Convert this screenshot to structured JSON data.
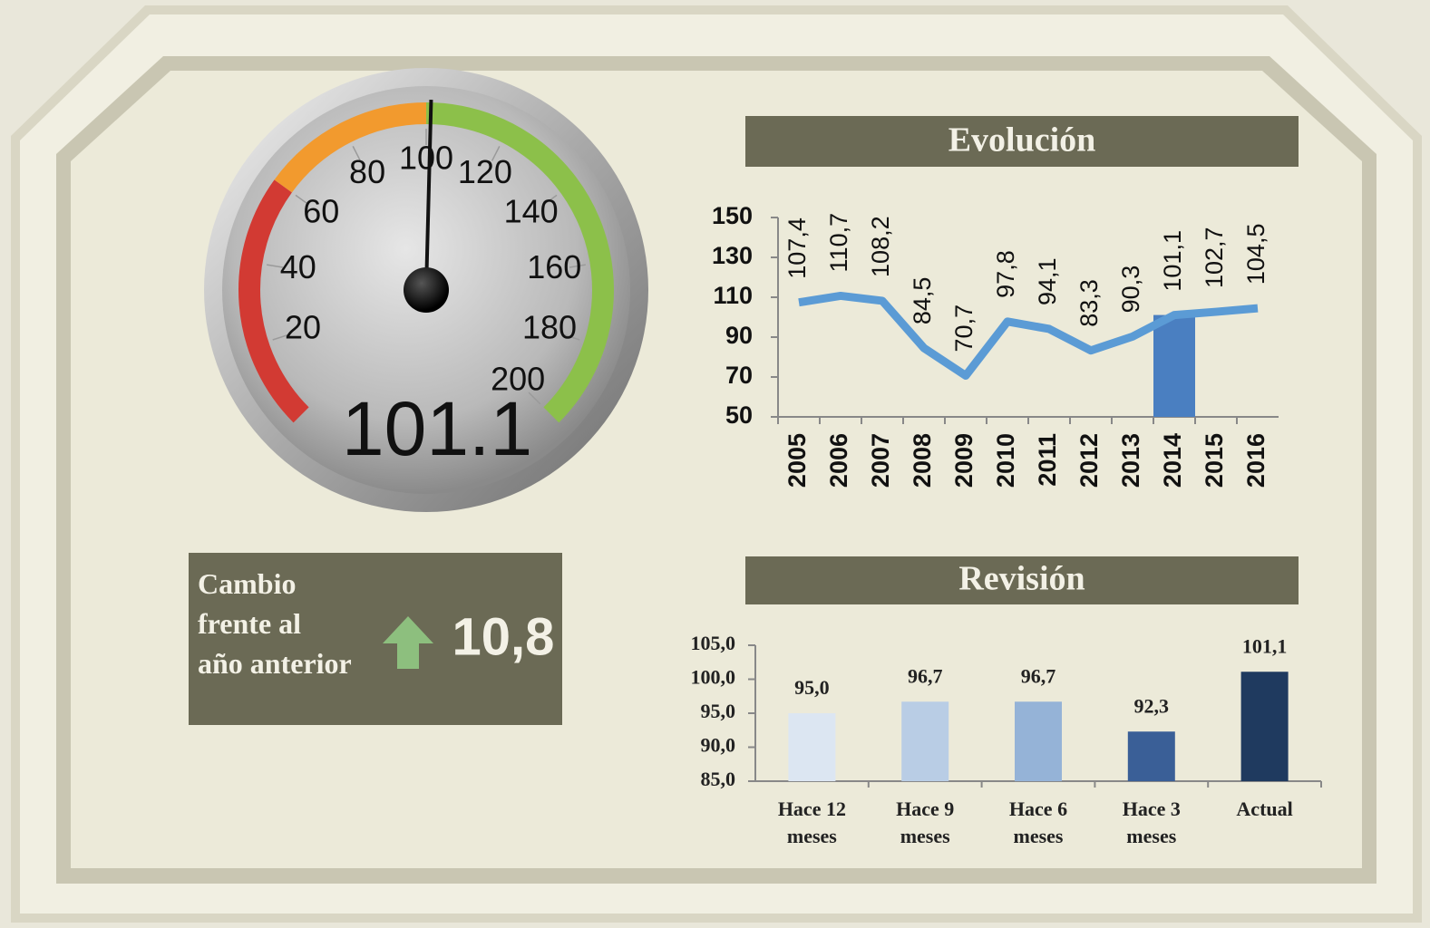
{
  "chart_data": [
    {
      "type": "gauge",
      "value": 101.1,
      "range": [
        0,
        200
      ],
      "ticks": [
        20,
        40,
        60,
        80,
        100,
        120,
        140,
        160,
        180,
        200
      ],
      "bands": [
        {
          "from": 0,
          "to": 60,
          "color": "#d23a33"
        },
        {
          "from": 60,
          "to": 100,
          "color": "#f29a2e"
        },
        {
          "from": 100,
          "to": 200,
          "color": "#8cc04a"
        }
      ],
      "needle_color": "#111111"
    },
    {
      "type": "line",
      "title": "Evolución",
      "categories": [
        "2005",
        "2006",
        "2007",
        "2008",
        "2009",
        "2010",
        "2011",
        "2012",
        "2013",
        "2014",
        "2015",
        "2016"
      ],
      "series": [
        {
          "type": "line",
          "color": "#5b9bd5",
          "values": [
            107.4,
            110.7,
            108.2,
            84.5,
            70.7,
            97.8,
            94.1,
            83.3,
            90.3,
            101.1,
            102.7,
            104.5
          ],
          "value_labels": [
            "107,4",
            "110,7",
            "108,2",
            "84,5",
            "70,7",
            "97,8",
            "94,1",
            "83,3",
            "90,3",
            "101,1",
            "102,7",
            "104,5"
          ]
        },
        {
          "type": "bar",
          "color": "#4a7fc1",
          "values": [
            null,
            null,
            null,
            null,
            null,
            null,
            null,
            null,
            null,
            101.1,
            null,
            null
          ]
        }
      ],
      "ylim": [
        50,
        150
      ],
      "yticks": [
        50,
        70,
        90,
        110,
        130,
        150
      ]
    },
    {
      "type": "bar",
      "title": "Revisión",
      "categories": [
        "Hace 12 meses",
        "Hace 9 meses",
        "Hace 6 meses",
        "Hace 3 meses",
        "Actual"
      ],
      "values": [
        95.0,
        96.7,
        96.7,
        92.3,
        101.1
      ],
      "value_labels": [
        "95,0",
        "96,7",
        "96,7",
        "92,3",
        "101,1"
      ],
      "colors": [
        "#dce6f2",
        "#b9cde5",
        "#95b3d7",
        "#3a5f97",
        "#1f3a5f"
      ],
      "ylim": [
        85,
        105
      ],
      "yticks": [
        {
          "value": 85,
          "label": "85,0"
        },
        {
          "value": 90,
          "label": "90,0"
        },
        {
          "value": 95,
          "label": "95,0"
        },
        {
          "value": 100,
          "label": "100,0"
        },
        {
          "value": 105,
          "label": "105,0"
        }
      ]
    }
  ],
  "kpi": {
    "label": "Cambio frente al año anterior",
    "value": "10,8"
  }
}
